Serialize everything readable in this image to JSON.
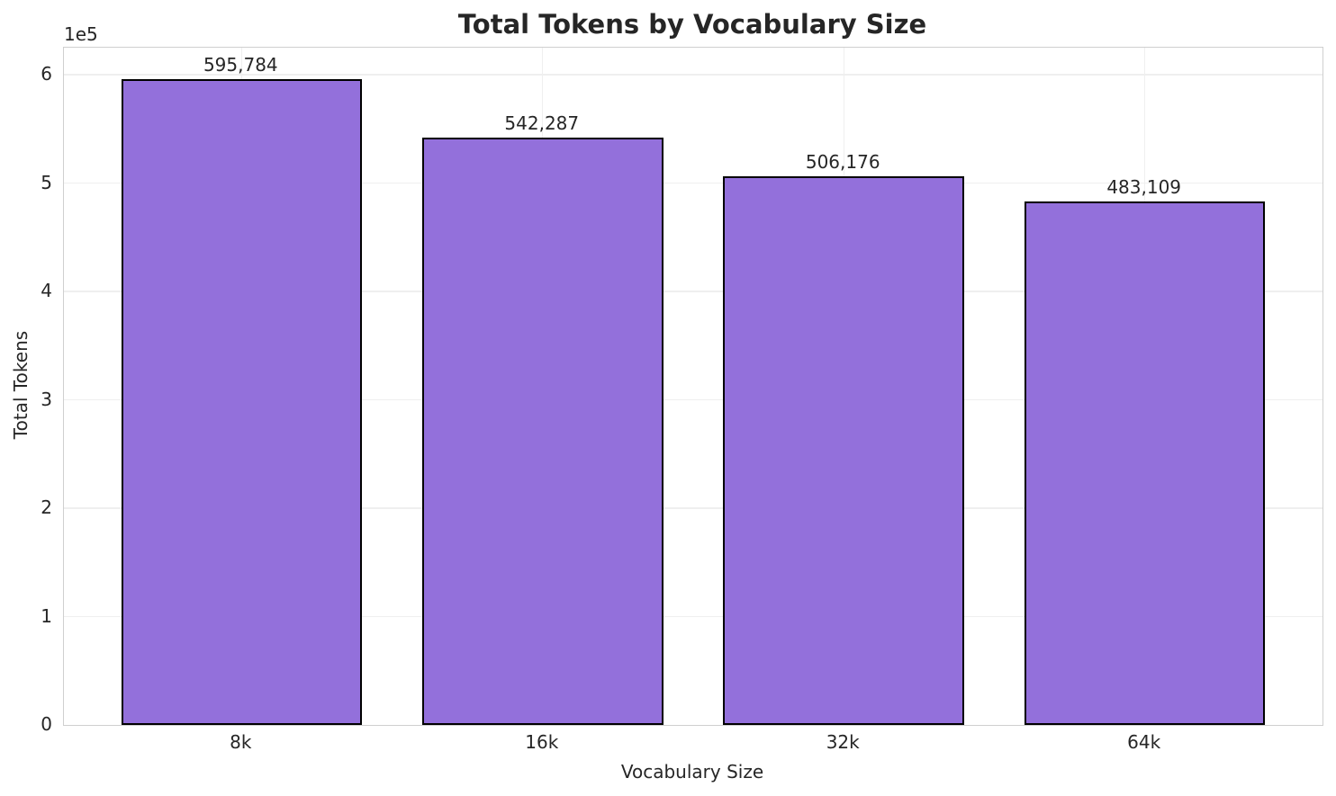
{
  "chart_data": {
    "type": "bar",
    "title": "Total Tokens by Vocabulary Size",
    "xlabel": "Vocabulary Size",
    "ylabel": "Total Tokens",
    "y_offset_text": "1e5",
    "categories": [
      "8k",
      "16k",
      "32k",
      "64k"
    ],
    "values": [
      595784,
      542287,
      506176,
      483109
    ],
    "value_labels": [
      "595,784",
      "542,287",
      "506,176",
      "483,109"
    ],
    "ytick_labels": [
      "0",
      "1",
      "2",
      "3",
      "4",
      "5",
      "6"
    ],
    "ytick_values": [
      0,
      100000,
      200000,
      300000,
      400000,
      500000,
      600000
    ],
    "ylim": [
      0,
      625000
    ],
    "bar_width_fraction": 0.8,
    "grid": true,
    "legend": "none",
    "colors": {
      "bar_fill": "#9370DB",
      "bar_edge": "#000000",
      "grid": "#efefef",
      "spine": "#cfcfcf",
      "text": "#262626",
      "background": "#ffffff"
    }
  }
}
